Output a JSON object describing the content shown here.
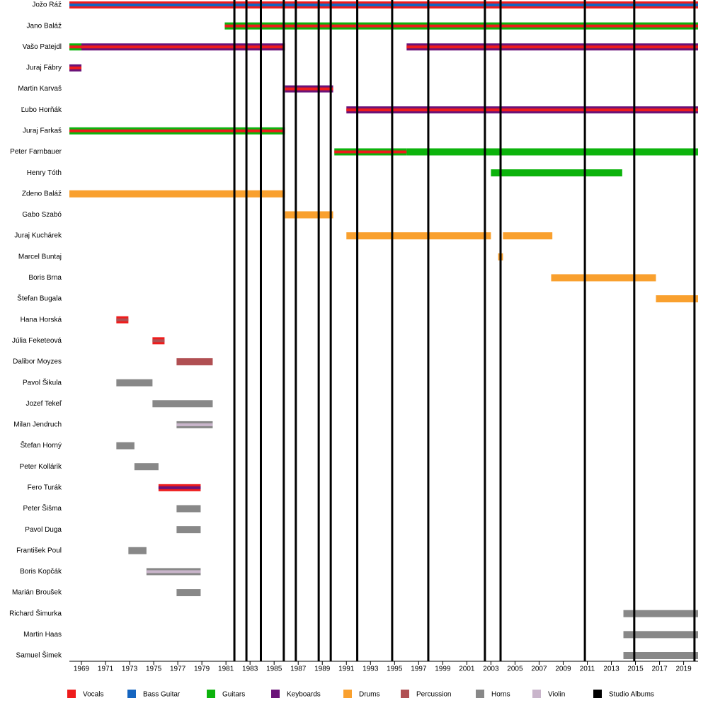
{
  "chart_data": {
    "type": "timeline",
    "xlim": [
      1968,
      2020.2
    ],
    "xticks": [
      1969,
      1971,
      1973,
      1975,
      1977,
      1979,
      1981,
      1983,
      1985,
      1987,
      1989,
      1991,
      1993,
      1995,
      1997,
      1999,
      2001,
      2003,
      2005,
      2007,
      2009,
      2011,
      2013,
      2015,
      2017,
      2019
    ],
    "series": [
      {
        "name": "Vocals",
        "color": "#ee1c1c"
      },
      {
        "name": "Bass Guitar",
        "color": "#1565c0"
      },
      {
        "name": "Guitars",
        "color": "#0cb30c"
      },
      {
        "name": "Keyboards",
        "color": "#6a1278"
      },
      {
        "name": "Drums",
        "color": "#f9a02e"
      },
      {
        "name": "Percussion",
        "color": "#b04f52"
      },
      {
        "name": "Horns",
        "color": "#888888"
      },
      {
        "name": "Violin",
        "color": "#c9b5cb"
      }
    ],
    "albums": {
      "name": "Studio Albums",
      "color": "#000000",
      "values": [
        1981.7,
        1982.7,
        1983.9,
        1985.8,
        1986.8,
        1988.7,
        1989.7,
        1991.9,
        1994.8,
        1997.8,
        2002.5,
        2003.8,
        2010.8,
        2014.9,
        2019.9
      ]
    },
    "members": [
      {
        "name": "Jožo Ráž",
        "periods": [
          {
            "start": 1968,
            "end": 2020.2,
            "roles": [
              "Vocals",
              "Bass Guitar"
            ]
          }
        ]
      },
      {
        "name": "Jano Baláž",
        "periods": [
          {
            "start": 1980.9,
            "end": 2020.2,
            "roles": [
              "Guitars",
              "Vocals"
            ]
          }
        ]
      },
      {
        "name": "Vašo Patejdl",
        "periods": [
          {
            "start": 1968,
            "end": 1969,
            "roles": [
              "Guitars",
              "Vocals"
            ]
          },
          {
            "start": 1969,
            "end": 1985.9,
            "roles": [
              "Keyboards",
              "Vocals"
            ]
          },
          {
            "start": 1996,
            "end": 2020.2,
            "roles": [
              "Keyboards",
              "Vocals"
            ]
          }
        ]
      },
      {
        "name": "Juraj Fábry",
        "periods": [
          {
            "start": 1968,
            "end": 1969,
            "roles": [
              "Keyboards",
              "Vocals"
            ]
          }
        ]
      },
      {
        "name": "Martin Karvaš",
        "periods": [
          {
            "start": 1985.9,
            "end": 1989.9,
            "roles": [
              "Keyboards",
              "Vocals"
            ]
          }
        ]
      },
      {
        "name": "Ľubo Horňák",
        "periods": [
          {
            "start": 1991,
            "end": 2020.2,
            "roles": [
              "Keyboards",
              "Vocals"
            ]
          }
        ]
      },
      {
        "name": "Juraj Farkaš",
        "periods": [
          {
            "start": 1968,
            "end": 1985.9,
            "roles": [
              "Guitars",
              "Vocals"
            ]
          }
        ]
      },
      {
        "name": "Peter Farnbauer",
        "periods": [
          {
            "start": 1990,
            "end": 1996,
            "roles": [
              "Guitars",
              "Vocals"
            ]
          },
          {
            "start": 1996,
            "end": 2020.2,
            "roles": [
              "Guitars"
            ]
          }
        ]
      },
      {
        "name": "Henry Tóth",
        "periods": [
          {
            "start": 2003,
            "end": 2013.9,
            "roles": [
              "Guitars"
            ]
          }
        ]
      },
      {
        "name": "Zdeno Baláž",
        "periods": [
          {
            "start": 1968,
            "end": 1985.9,
            "roles": [
              "Drums"
            ]
          }
        ]
      },
      {
        "name": "Gabo Szabó",
        "periods": [
          {
            "start": 1985.9,
            "end": 1989.9,
            "roles": [
              "Drums"
            ]
          }
        ]
      },
      {
        "name": "Juraj Kuchárek",
        "periods": [
          {
            "start": 1991,
            "end": 2003,
            "roles": [
              "Drums"
            ]
          },
          {
            "start": 2004,
            "end": 2008.1,
            "roles": [
              "Drums"
            ]
          }
        ]
      },
      {
        "name": "Marcel Buntaj",
        "periods": [
          {
            "start": 2003.6,
            "end": 2004,
            "roles": [
              "Drums"
            ]
          }
        ]
      },
      {
        "name": "Boris Brna",
        "periods": [
          {
            "start": 2008,
            "end": 2016.7,
            "roles": [
              "Drums"
            ]
          }
        ]
      },
      {
        "name": "Štefan Bugala",
        "periods": [
          {
            "start": 2016.7,
            "end": 2020.2,
            "roles": [
              "Drums"
            ]
          }
        ]
      },
      {
        "name": "Hana Horská",
        "periods": [
          {
            "start": 1971.9,
            "end": 1972.9,
            "roles": [
              "Vocals",
              "Percussion"
            ]
          }
        ]
      },
      {
        "name": "Júlia Feketeová",
        "periods": [
          {
            "start": 1974.9,
            "end": 1975.9,
            "roles": [
              "Vocals",
              "Percussion"
            ]
          }
        ]
      },
      {
        "name": "Dalibor Moyzes",
        "periods": [
          {
            "start": 1976.9,
            "end": 1979.9,
            "roles": [
              "Percussion"
            ]
          }
        ]
      },
      {
        "name": "Pavol Šikula",
        "periods": [
          {
            "start": 1971.9,
            "end": 1974.9,
            "roles": [
              "Horns"
            ]
          }
        ]
      },
      {
        "name": "Jozef Tekeľ",
        "periods": [
          {
            "start": 1974.9,
            "end": 1979.9,
            "roles": [
              "Horns"
            ]
          }
        ]
      },
      {
        "name": "Milan Jendruch",
        "periods": [
          {
            "start": 1976.9,
            "end": 1979.9,
            "roles": [
              "Horns",
              "Violin"
            ]
          }
        ]
      },
      {
        "name": "Štefan Horný",
        "periods": [
          {
            "start": 1971.9,
            "end": 1973.4,
            "roles": [
              "Horns"
            ]
          }
        ]
      },
      {
        "name": "Peter Kollárik",
        "periods": [
          {
            "start": 1973.4,
            "end": 1975.4,
            "roles": [
              "Horns"
            ]
          }
        ]
      },
      {
        "name": "Fero Turák",
        "periods": [
          {
            "start": 1975.4,
            "end": 1978.9,
            "roles": [
              "Vocals",
              "Keyboards"
            ]
          }
        ]
      },
      {
        "name": "Peter Šišma",
        "periods": [
          {
            "start": 1976.9,
            "end": 1978.9,
            "roles": [
              "Horns"
            ]
          }
        ]
      },
      {
        "name": "Pavol Duga",
        "periods": [
          {
            "start": 1976.9,
            "end": 1978.9,
            "roles": [
              "Horns"
            ]
          }
        ]
      },
      {
        "name": "František Poul",
        "periods": [
          {
            "start": 1972.9,
            "end": 1974.4,
            "roles": [
              "Horns"
            ]
          }
        ]
      },
      {
        "name": "Boris Kopčák",
        "periods": [
          {
            "start": 1974.4,
            "end": 1978.9,
            "roles": [
              "Horns",
              "Violin"
            ]
          }
        ]
      },
      {
        "name": "Marián Broušek",
        "periods": [
          {
            "start": 1976.9,
            "end": 1978.9,
            "roles": [
              "Horns"
            ]
          }
        ]
      },
      {
        "name": "Richard Šimurka",
        "periods": [
          {
            "start": 2014,
            "end": 2020.2,
            "roles": [
              "Horns"
            ]
          }
        ]
      },
      {
        "name": "Martin Haas",
        "periods": [
          {
            "start": 2014,
            "end": 2020.2,
            "roles": [
              "Horns"
            ]
          }
        ]
      },
      {
        "name": "Samuel Šimek",
        "periods": [
          {
            "start": 2014,
            "end": 2020.2,
            "roles": [
              "Horns"
            ]
          }
        ]
      }
    ]
  }
}
